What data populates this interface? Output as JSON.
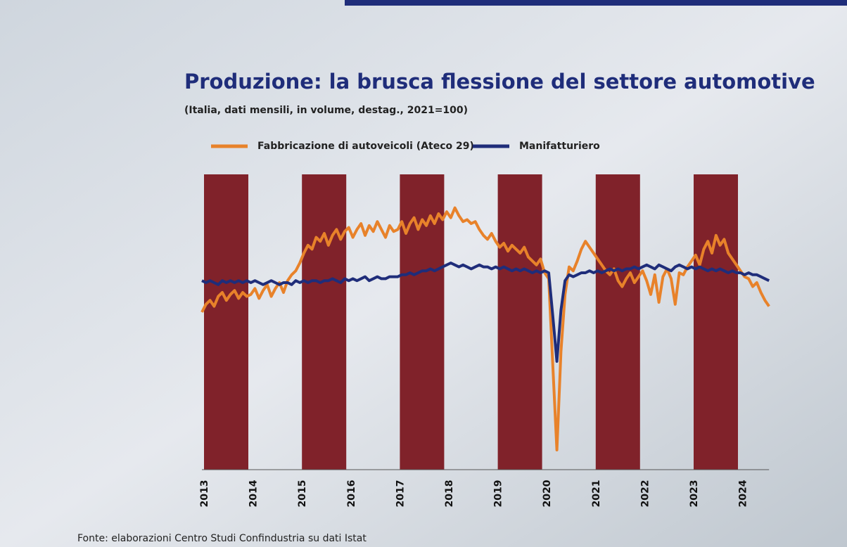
{
  "chart_data": {
    "type": "line",
    "title": "Produzione: la brusca flessione del settore automotive",
    "subtitle": "(Italia, dati mensili, in volume, destag., 2021=100)",
    "source": "Fonte: elaborazioni Centro Studi Confindustria su dati Istat",
    "categories": [
      "2013",
      null,
      null,
      null,
      null,
      null,
      null,
      null,
      null,
      null,
      null,
      null,
      "2014",
      null,
      null,
      null,
      null,
      null,
      null,
      null,
      null,
      null,
      null,
      null,
      "2015",
      null,
      null,
      null,
      null,
      null,
      null,
      null,
      null,
      null,
      null,
      null,
      "2016",
      null,
      null,
      null,
      null,
      null,
      null,
      null,
      null,
      null,
      null,
      null,
      "2017",
      null,
      null,
      null,
      null,
      null,
      null,
      null,
      null,
      null,
      null,
      null,
      "2018",
      null,
      null,
      null,
      null,
      null,
      null,
      null,
      null,
      null,
      null,
      null,
      "2019",
      null,
      null,
      null,
      null,
      null,
      null,
      null,
      null,
      null,
      null,
      null,
      "2020",
      null,
      null,
      null,
      null,
      null,
      null,
      null,
      null,
      null,
      null,
      null,
      "2021",
      null,
      null,
      null,
      null,
      null,
      null,
      null,
      null,
      null,
      null,
      null,
      "2022",
      null,
      null,
      null,
      null,
      null,
      null,
      null,
      null,
      null,
      null,
      null,
      "2023",
      null,
      null,
      null,
      null,
      null,
      null,
      null,
      null,
      null,
      null,
      null,
      "2024",
      null,
      null,
      null,
      null,
      null,
      null,
      null
    ],
    "series": [
      {
        "name": "Fabbricazione di autoveicoli (Ateco 29)",
        "color": "#e8822a",
        "values": [
          80,
          84,
          86,
          83,
          88,
          90,
          86,
          89,
          91,
          87,
          90,
          88,
          89,
          92,
          87,
          91,
          94,
          88,
          92,
          95,
          90,
          96,
          99,
          101,
          105,
          110,
          114,
          112,
          118,
          116,
          120,
          114,
          119,
          122,
          117,
          121,
          123,
          118,
          122,
          125,
          119,
          124,
          121,
          126,
          122,
          118,
          124,
          121,
          122,
          126,
          120,
          125,
          128,
          122,
          127,
          124,
          129,
          125,
          130,
          127,
          131,
          128,
          133,
          129,
          126,
          127,
          125,
          126,
          122,
          119,
          117,
          120,
          116,
          113,
          115,
          111,
          114,
          112,
          110,
          113,
          108,
          106,
          104,
          107,
          100,
          97,
          53,
          10,
          60,
          89,
          103,
          101,
          106,
          112,
          116,
          113,
          110,
          107,
          104,
          101,
          99,
          102,
          96,
          93,
          97,
          100,
          95,
          98,
          101,
          96,
          89,
          99,
          85,
          98,
          102,
          97,
          84,
          100,
          99,
          103,
          106,
          109,
          104,
          112,
          116,
          110,
          119,
          114,
          117,
          110,
          107,
          104,
          101,
          98,
          97,
          93,
          95,
          90,
          86,
          83
        ]
      },
      {
        "name": "Manifatturiero",
        "color": "#1f2d7a",
        "values": [
          96,
          95,
          96,
          95,
          94,
          96,
          95,
          96,
          95,
          96,
          95,
          96,
          95,
          96,
          95,
          94,
          95,
          96,
          95,
          94,
          95,
          95,
          94,
          96,
          95,
          96,
          95,
          96,
          96,
          95,
          96,
          96,
          97,
          96,
          95,
          97,
          96,
          97,
          96,
          97,
          98,
          96,
          97,
          98,
          97,
          97,
          98,
          98,
          98,
          99,
          99,
          100,
          99,
          100,
          101,
          101,
          102,
          101,
          102,
          103,
          104,
          105,
          104,
          103,
          104,
          103,
          102,
          103,
          104,
          103,
          103,
          102,
          103,
          102,
          103,
          102,
          101,
          102,
          101,
          102,
          101,
          100,
          101,
          100,
          101,
          100,
          78,
          55,
          81,
          96,
          99,
          98,
          99,
          100,
          100,
          101,
          100,
          101,
          100,
          101,
          102,
          101,
          102,
          101,
          102,
          102,
          103,
          102,
          103,
          104,
          103,
          102,
          104,
          103,
          102,
          101,
          103,
          104,
          103,
          102,
          103,
          102,
          103,
          102,
          101,
          102,
          101,
          102,
          101,
          100,
          101,
          100,
          100,
          99,
          100,
          99,
          99,
          98,
          97,
          96
        ]
      }
    ],
    "ylim": [
      0,
      150
    ]
  }
}
